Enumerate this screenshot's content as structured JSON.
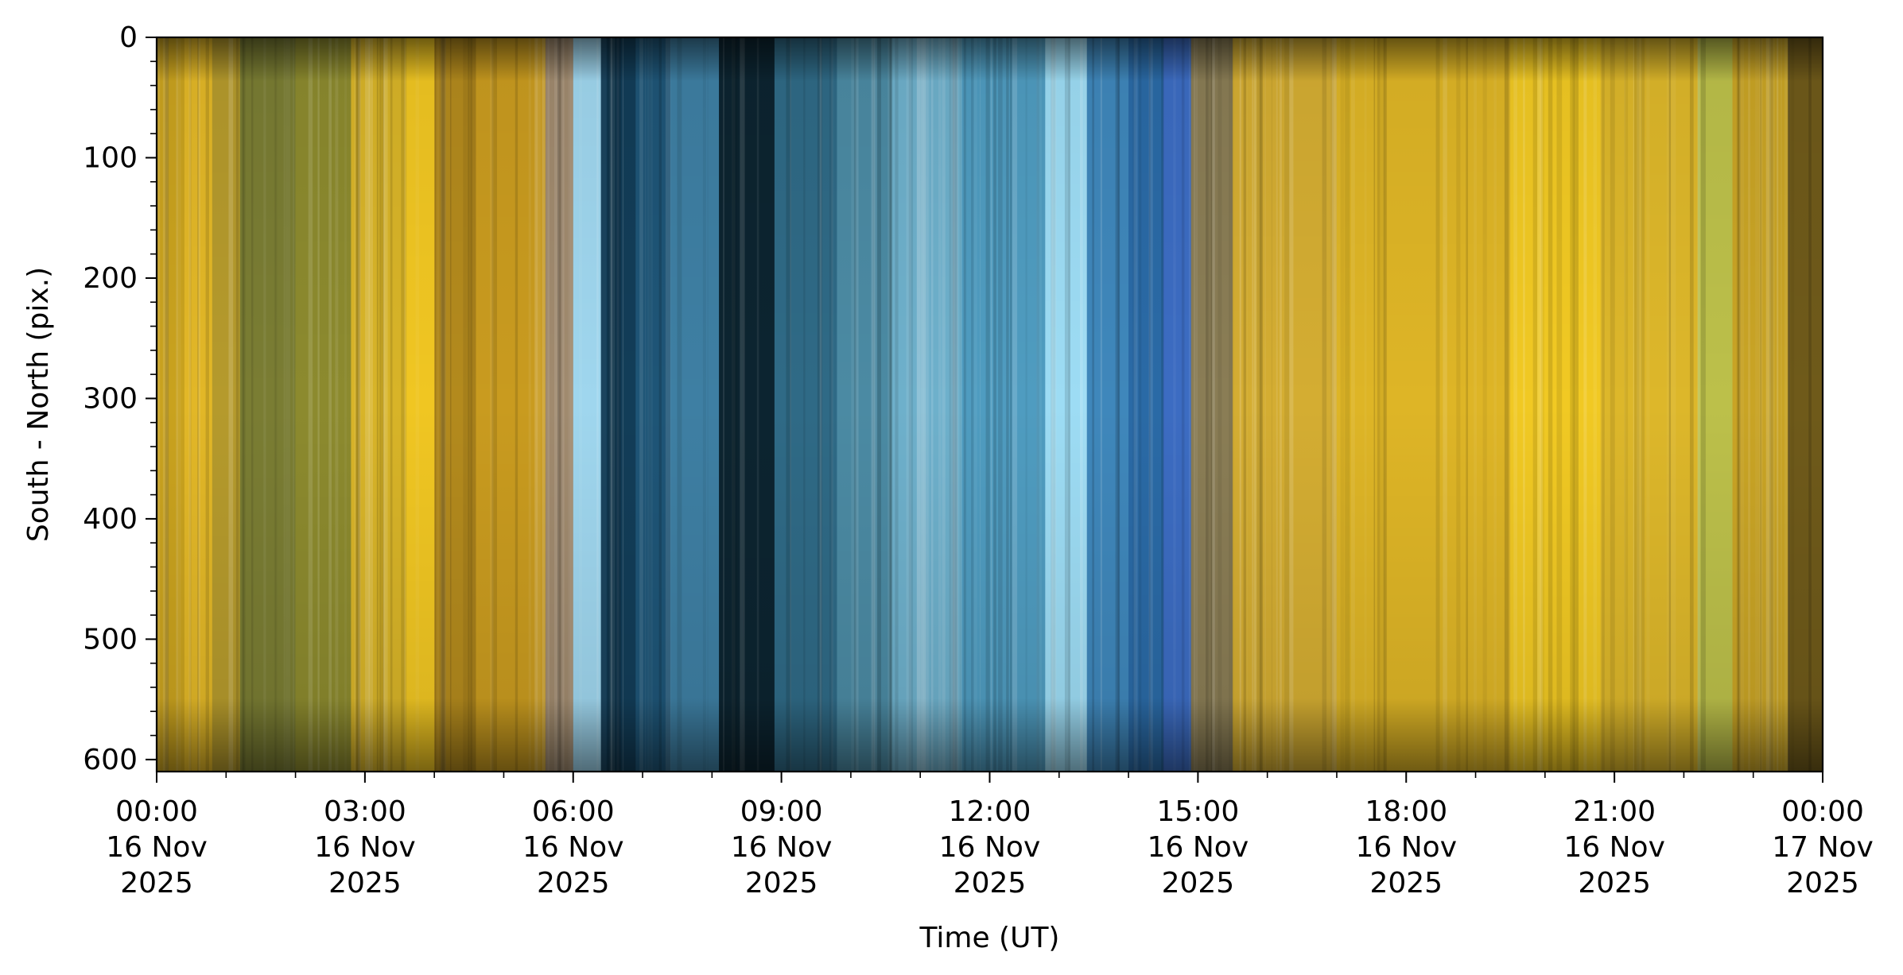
{
  "chart_data": {
    "type": "heatmap",
    "title": "",
    "xlabel": "Time (UT)",
    "ylabel": "South - North (pix.)",
    "xlim": [
      "2025-11-16T00:00",
      "2025-11-17T00:00"
    ],
    "ylim": [
      610,
      0
    ],
    "y_inverted": true,
    "grid": false,
    "legend": "none",
    "x_ticks": [
      {
        "hour": 0,
        "lines": [
          "00:00",
          "16 Nov",
          "2025"
        ]
      },
      {
        "hour": 3,
        "lines": [
          "03:00",
          "16 Nov",
          "2025"
        ]
      },
      {
        "hour": 6,
        "lines": [
          "06:00",
          "16 Nov",
          "2025"
        ]
      },
      {
        "hour": 9,
        "lines": [
          "09:00",
          "16 Nov",
          "2025"
        ]
      },
      {
        "hour": 12,
        "lines": [
          "12:00",
          "16 Nov",
          "2025"
        ]
      },
      {
        "hour": 15,
        "lines": [
          "15:00",
          "16 Nov",
          "2025"
        ]
      },
      {
        "hour": 18,
        "lines": [
          "18:00",
          "16 Nov",
          "2025"
        ]
      },
      {
        "hour": 21,
        "lines": [
          "21:00",
          "16 Nov",
          "2025"
        ]
      },
      {
        "hour": 24,
        "lines": [
          "00:00",
          "17 Nov",
          "2025"
        ]
      }
    ],
    "x_minor_step_hours": 1,
    "y_ticks": [
      0,
      100,
      200,
      300,
      400,
      500,
      600
    ],
    "y_minor_step": 20,
    "color_bands": [
      {
        "start": 0.0,
        "end": 0.4,
        "color": "#c9a21e"
      },
      {
        "start": 0.4,
        "end": 0.8,
        "color": "#e2b727"
      },
      {
        "start": 0.8,
        "end": 1.2,
        "color": "#b59a2c"
      },
      {
        "start": 1.2,
        "end": 2.0,
        "color": "#7a7d33"
      },
      {
        "start": 2.0,
        "end": 2.8,
        "color": "#8c8a2e"
      },
      {
        "start": 2.8,
        "end": 3.6,
        "color": "#d8b428"
      },
      {
        "start": 3.6,
        "end": 4.0,
        "color": "#f0c622"
      },
      {
        "start": 4.0,
        "end": 4.6,
        "color": "#b38a1d"
      },
      {
        "start": 4.6,
        "end": 5.6,
        "color": "#c99b1f"
      },
      {
        "start": 5.6,
        "end": 6.0,
        "color": "#a08a6e"
      },
      {
        "start": 6.0,
        "end": 6.4,
        "color": "#9fd6ee"
      },
      {
        "start": 6.4,
        "end": 6.9,
        "color": "#123d58"
      },
      {
        "start": 6.9,
        "end": 7.4,
        "color": "#1e5577"
      },
      {
        "start": 7.4,
        "end": 8.1,
        "color": "#3e7fa3"
      },
      {
        "start": 8.1,
        "end": 8.9,
        "color": "#0c2430"
      },
      {
        "start": 8.9,
        "end": 9.8,
        "color": "#2f6a86"
      },
      {
        "start": 9.8,
        "end": 10.6,
        "color": "#4b8aa3"
      },
      {
        "start": 10.6,
        "end": 11.6,
        "color": "#6eb0cb"
      },
      {
        "start": 11.6,
        "end": 12.8,
        "color": "#4f9cc0"
      },
      {
        "start": 12.8,
        "end": 13.4,
        "color": "#9ddcf4"
      },
      {
        "start": 13.4,
        "end": 14.0,
        "color": "#3f87bb"
      },
      {
        "start": 14.0,
        "end": 14.5,
        "color": "#2a6aa6"
      },
      {
        "start": 14.5,
        "end": 14.9,
        "color": "#3c6cc2"
      },
      {
        "start": 14.9,
        "end": 15.5,
        "color": "#8a7d55"
      },
      {
        "start": 15.5,
        "end": 17.0,
        "color": "#d4ad32"
      },
      {
        "start": 17.0,
        "end": 19.5,
        "color": "#deb526"
      },
      {
        "start": 19.5,
        "end": 20.8,
        "color": "#f1c923"
      },
      {
        "start": 20.8,
        "end": 22.2,
        "color": "#ddb72a"
      },
      {
        "start": 22.2,
        "end": 22.7,
        "color": "#bcc04a"
      },
      {
        "start": 22.7,
        "end": 23.5,
        "color": "#c9a425"
      },
      {
        "start": 23.5,
        "end": 24.0,
        "color": "#6f5a1a"
      }
    ]
  }
}
